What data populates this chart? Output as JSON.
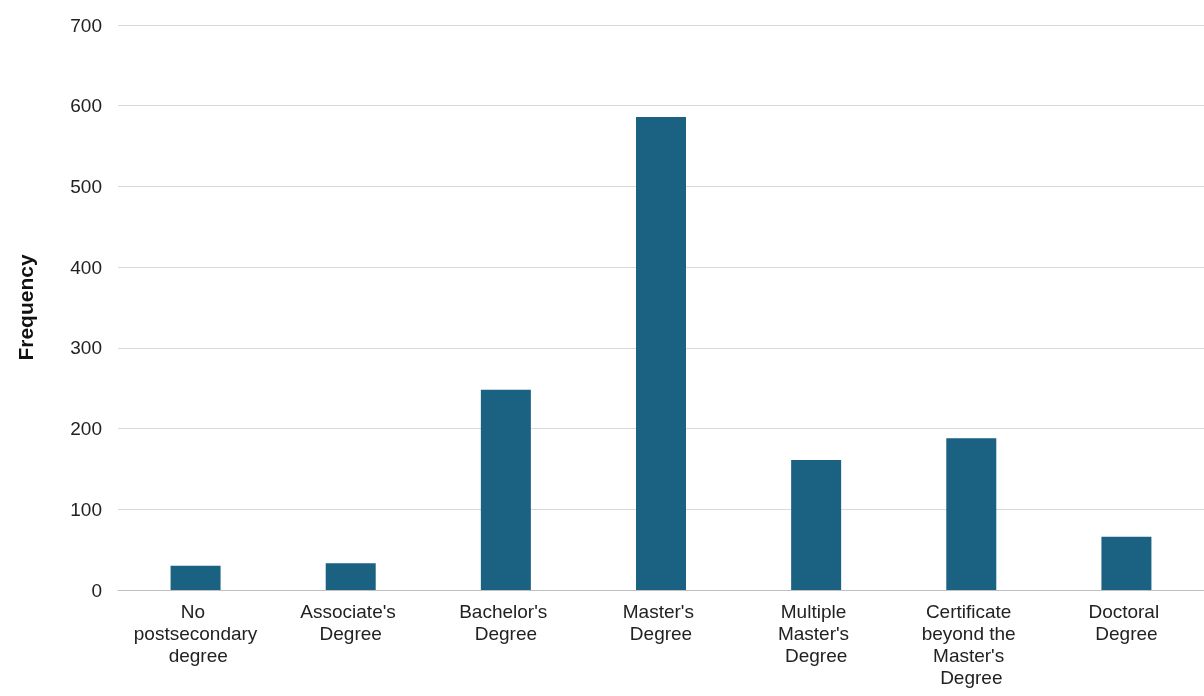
{
  "chart_data": {
    "type": "bar",
    "ylabel": "Frequency",
    "categories": [
      "No postsecondary degree",
      "Associate's Degree",
      "Bachelor's Degree",
      "Master's Degree",
      "Multiple Master's Degree",
      "Certificate beyond the Master's Degree",
      "Doctoral Degree"
    ],
    "values": [
      30,
      33,
      248,
      586,
      161,
      188,
      66
    ],
    "color": "#1a6182",
    "ylim": [
      0,
      700
    ],
    "yticks": [
      0,
      100,
      200,
      300,
      400,
      500,
      600,
      700
    ],
    "grid": "y"
  }
}
